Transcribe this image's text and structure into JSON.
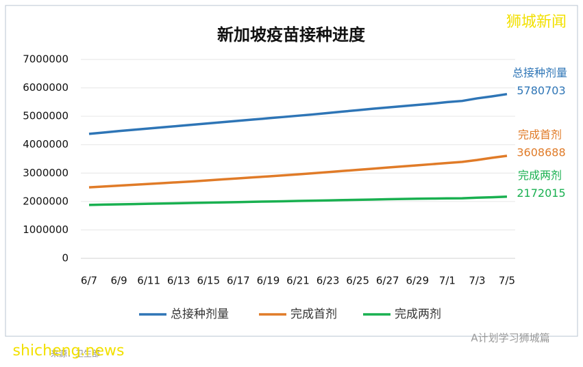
{
  "chart_data": {
    "type": "line",
    "title": "新加坡疫苗接种进度",
    "categories": [
      "6/7",
      null,
      "6/9",
      null,
      "6/11",
      null,
      "6/13",
      null,
      "6/15",
      null,
      "6/17",
      null,
      "6/19",
      null,
      "6/21",
      null,
      "6/23",
      null,
      "6/25",
      null,
      "6/27",
      null,
      "6/29",
      null,
      "7/1",
      null,
      "7/3",
      null,
      "7/5"
    ],
    "series": [
      {
        "name": "总接种剂量",
        "color": "#2e75b6",
        "values": [
          4380000,
          4430000,
          4480000,
          4525000,
          4570000,
          4615000,
          4660000,
          4705000,
          4750000,
          4795000,
          4840000,
          4885000,
          4930000,
          4975000,
          5020000,
          5065000,
          5115000,
          5165000,
          5215000,
          5265000,
          5310000,
          5355000,
          5400000,
          5445000,
          5500000,
          5540000,
          5630000,
          5700000,
          5780703
        ]
      },
      {
        "name": "完成首剂",
        "color": "#e07b28",
        "values": [
          2500000,
          2530000,
          2560000,
          2590000,
          2620000,
          2650000,
          2680000,
          2710000,
          2745000,
          2780000,
          2815000,
          2850000,
          2885000,
          2920000,
          2955000,
          2995000,
          3035000,
          3075000,
          3115000,
          3155000,
          3195000,
          3235000,
          3275000,
          3315000,
          3355000,
          3395000,
          3460000,
          3540000,
          3608688
        ]
      },
      {
        "name": "完成两剂",
        "color": "#19b050",
        "values": [
          1880000,
          1890000,
          1900000,
          1910000,
          1920000,
          1930000,
          1940000,
          1950000,
          1960000,
          1970000,
          1980000,
          1990000,
          2000000,
          2010000,
          2020000,
          2030000,
          2040000,
          2050000,
          2060000,
          2070000,
          2080000,
          2090000,
          2100000,
          2105000,
          2110000,
          2115000,
          2135000,
          2150000,
          2172015
        ]
      }
    ],
    "ylim": [
      0,
      7000000
    ],
    "yticks": [
      0,
      1000000,
      2000000,
      3000000,
      4000000,
      5000000,
      6000000,
      7000000
    ],
    "grid": true,
    "legend": "bottom"
  },
  "page_texts": {
    "brand": "狮城新闻",
    "site": "shicheng.news",
    "source": "来源：卫生部",
    "wechat": "A计划学习狮城篇"
  }
}
